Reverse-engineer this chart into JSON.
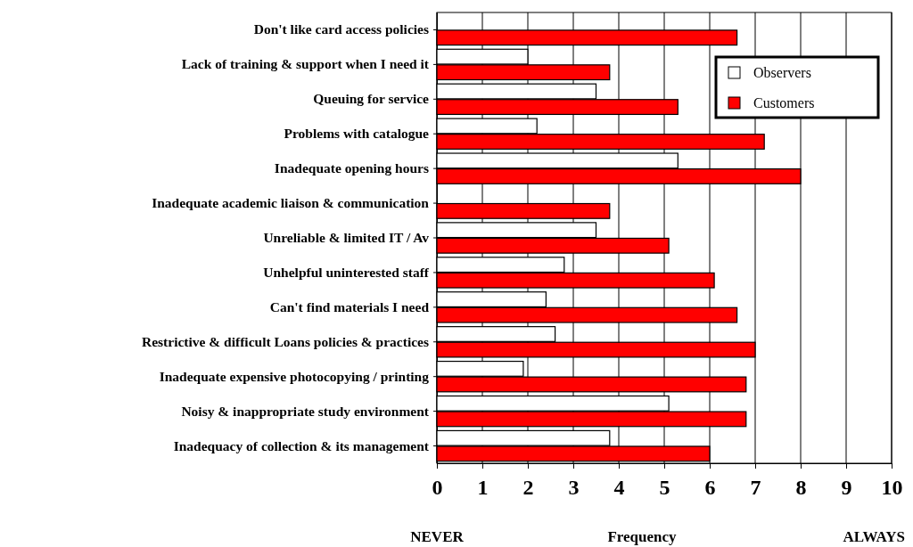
{
  "chart_data": {
    "type": "bar",
    "orientation": "horizontal",
    "xlabel": "Frequency",
    "categories": [
      "Don't like card access policies",
      "Lack of training & support when I need it",
      "Queuing for service",
      "Problems with catalogue",
      "Inadequate opening hours",
      "Inadequate academic liaison & communication",
      "Unreliable & limited IT / Av",
      "Unhelpful uninterested staff",
      "Can't find materials I need",
      "Restrictive & difficult Loans policies & practices",
      "Inadequate expensive photocopying / printing",
      "Noisy & inappropriate study environment",
      "Inadequacy of collection & its management"
    ],
    "series": [
      {
        "name": "Observers",
        "color": "#ffffff",
        "values": [
          0,
          2.0,
          3.5,
          2.2,
          5.3,
          0,
          3.5,
          2.8,
          2.4,
          2.6,
          1.9,
          5.1,
          3.8
        ]
      },
      {
        "name": "Customers",
        "color": "#ff0000",
        "values": [
          6.6,
          3.8,
          5.3,
          7.2,
          8.0,
          3.8,
          5.1,
          6.1,
          6.6,
          7.0,
          6.8,
          6.8,
          6.0
        ]
      }
    ],
    "xlim": [
      0,
      10
    ],
    "xticks": [
      0,
      1,
      2,
      3,
      4,
      5,
      6,
      7,
      8,
      9,
      10
    ],
    "grid": "x",
    "legend": "top right",
    "annotations": [
      "NEVER",
      "ALWAYS"
    ]
  }
}
